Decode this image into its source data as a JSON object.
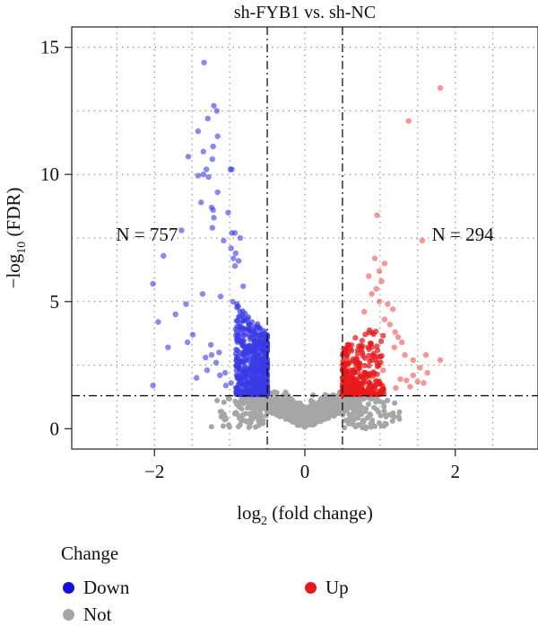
{
  "chart_data": {
    "type": "scatter",
    "title": "sh-FYB1 vs. sh-NC",
    "xlabel_main": "log",
    "xlabel_sub": "2",
    "xlabel_rest": " (fold change)",
    "ylabel_main": "−log",
    "ylabel_sub": "10",
    "ylabel_rest": " (FDR)",
    "xlim": [
      -3.1,
      3.1
    ],
    "ylim": [
      -0.8,
      15.8
    ],
    "x_ticks": [
      -2,
      0,
      2
    ],
    "x_tick_labels": [
      "−2",
      "0",
      "2"
    ],
    "y_ticks": [
      0,
      5,
      10,
      15
    ],
    "y_tick_labels": [
      "0",
      "5",
      "10",
      "15"
    ],
    "grid": true,
    "fc_threshold": 0.5,
    "fdr_threshold": 1.3,
    "annotations": [
      {
        "text": "N = 757",
        "x": -2.1,
        "y": 7.4
      },
      {
        "text": "N = 294",
        "x": 2.1,
        "y": 7.4
      }
    ],
    "series": [
      {
        "name": "Down",
        "color": "#3a3ae6",
        "points": [
          [
            -1.34,
            14.4
          ],
          [
            -1.21,
            12.7
          ],
          [
            -1.17,
            12.5
          ],
          [
            -1.29,
            12.2
          ],
          [
            -1.42,
            11.7
          ],
          [
            -1.16,
            11.5
          ],
          [
            -1.22,
            11.1
          ],
          [
            -1.35,
            10.9
          ],
          [
            -1.55,
            10.7
          ],
          [
            -1.23,
            10.6
          ],
          [
            -1.31,
            10.2
          ],
          [
            -0.99,
            10.2
          ],
          [
            -0.97,
            10.2
          ],
          [
            -1.35,
            10.0
          ],
          [
            -1.42,
            9.95
          ],
          [
            -1.28,
            9.9
          ],
          [
            -1.16,
            9.3
          ],
          [
            -1.38,
            8.9
          ],
          [
            -1.24,
            8.7
          ],
          [
            -1.22,
            8.6
          ],
          [
            -1.02,
            8.5
          ],
          [
            -1.21,
            8.3
          ],
          [
            -1.23,
            7.9
          ],
          [
            -0.93,
            7.7
          ],
          [
            -1.64,
            7.8
          ],
          [
            -0.97,
            7.7
          ],
          [
            -0.86,
            7.5
          ],
          [
            -1.08,
            7.4
          ],
          [
            -0.98,
            7.1
          ],
          [
            -0.92,
            6.9
          ],
          [
            -0.95,
            6.7
          ],
          [
            -1.88,
            6.8
          ],
          [
            -0.88,
            6.6
          ],
          [
            -0.93,
            6.4
          ],
          [
            -2.02,
            5.7
          ],
          [
            -0.82,
            5.6
          ],
          [
            -1.36,
            5.3
          ],
          [
            -1.12,
            5.2
          ],
          [
            -0.96,
            5.0
          ],
          [
            -1.58,
            4.9
          ],
          [
            -1.95,
            4.2
          ],
          [
            -0.88,
            4.4
          ],
          [
            -1.72,
            4.5
          ],
          [
            -0.76,
            3.9
          ],
          [
            -1.49,
            3.7
          ],
          [
            -1.56,
            3.4
          ],
          [
            -1.82,
            3.2
          ],
          [
            -1.25,
            3.3
          ],
          [
            -1.14,
            3.0
          ],
          [
            -1.24,
            2.9
          ],
          [
            -1.32,
            2.8
          ],
          [
            -1.18,
            2.6
          ],
          [
            -1.3,
            2.3
          ],
          [
            -1.44,
            2.0
          ],
          [
            -1.06,
            2.2
          ],
          [
            -1.13,
            2.1
          ],
          [
            -2.02,
            1.7
          ],
          [
            -0.98,
            1.8
          ],
          [
            -1.05,
            1.7
          ],
          [
            -0.88,
            1.6
          ]
        ]
      },
      {
        "name": "Up",
        "color": "#e8191c",
        "points": [
          [
            1.8,
            13.4
          ],
          [
            1.38,
            12.1
          ],
          [
            0.96,
            8.4
          ],
          [
            1.56,
            7.4
          ],
          [
            0.93,
            6.7
          ],
          [
            1.06,
            6.5
          ],
          [
            0.99,
            6.2
          ],
          [
            0.85,
            6.0
          ],
          [
            1.02,
            5.8
          ],
          [
            0.95,
            5.5
          ],
          [
            0.89,
            5.3
          ],
          [
            0.99,
            5.0
          ],
          [
            1.1,
            4.9
          ],
          [
            1.17,
            4.7
          ],
          [
            0.79,
            4.6
          ],
          [
            1.06,
            4.3
          ],
          [
            1.13,
            4.1
          ],
          [
            1.2,
            3.8
          ],
          [
            1.24,
            3.6
          ],
          [
            1.29,
            3.4
          ],
          [
            1.19,
            3.2
          ],
          [
            1.33,
            2.9
          ],
          [
            1.44,
            2.7
          ],
          [
            1.61,
            2.9
          ],
          [
            1.8,
            2.7
          ],
          [
            1.53,
            2.4
          ],
          [
            1.63,
            2.2
          ],
          [
            1.44,
            2.1
          ],
          [
            1.27,
            1.95
          ],
          [
            1.35,
            1.9
          ],
          [
            1.5,
            1.85
          ],
          [
            1.58,
            1.8
          ],
          [
            1.4,
            1.65
          ],
          [
            1.21,
            1.6
          ],
          [
            1.04,
            2.3
          ],
          [
            0.86,
            2.0
          ]
        ]
      },
      {
        "name": "Not",
        "color": "#a6a6a6",
        "points": []
      }
    ]
  },
  "legend": {
    "title": "Change",
    "items": [
      {
        "label": "Down",
        "color": "#1111dd"
      },
      {
        "label": "Up",
        "color": "#e8191c"
      },
      {
        "label": "Not",
        "color": "#a6a6a6"
      }
    ]
  }
}
